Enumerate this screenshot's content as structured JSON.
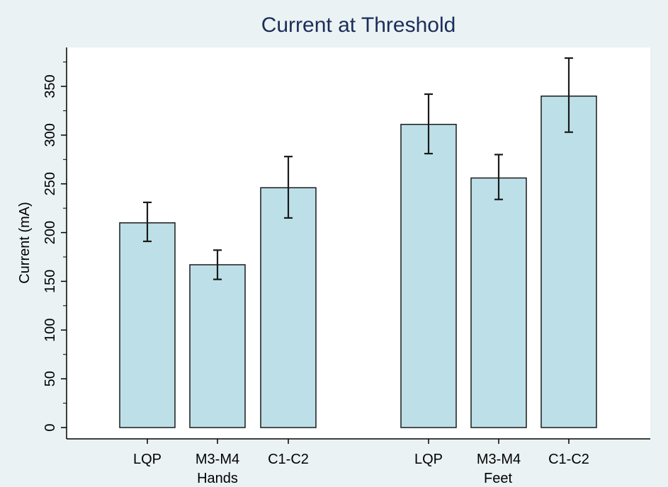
{
  "colors": {
    "background": "#eaf2f3",
    "plot_area": "#ffffff",
    "bar_fill": "#bde0e8",
    "bar_stroke": "#1a1a1a",
    "title": "#1c2d5a",
    "text": "#000000"
  },
  "chart_data": {
    "type": "bar",
    "title": "Current at Threshold",
    "ylabel": "Current (mA)",
    "xlabel": "",
    "ylim": [
      0,
      390
    ],
    "yticks": [
      0,
      50,
      100,
      150,
      200,
      250,
      300,
      350
    ],
    "grid": false,
    "error_bars": true,
    "groups": [
      {
        "name": "Hands",
        "bars": [
          {
            "label": "LQP",
            "value": 210,
            "err_low": 191,
            "err_high": 231
          },
          {
            "label": "M3-M4",
            "value": 167,
            "err_low": 152,
            "err_high": 182
          },
          {
            "label": "C1-C2",
            "value": 246,
            "err_low": 215,
            "err_high": 278
          }
        ]
      },
      {
        "name": "Feet",
        "bars": [
          {
            "label": "LQP",
            "value": 311,
            "err_low": 281,
            "err_high": 342
          },
          {
            "label": "M3-M4",
            "value": 256,
            "err_low": 234,
            "err_high": 280
          },
          {
            "label": "C1-C2",
            "value": 340,
            "err_low": 303,
            "err_high": 379
          }
        ]
      }
    ]
  }
}
